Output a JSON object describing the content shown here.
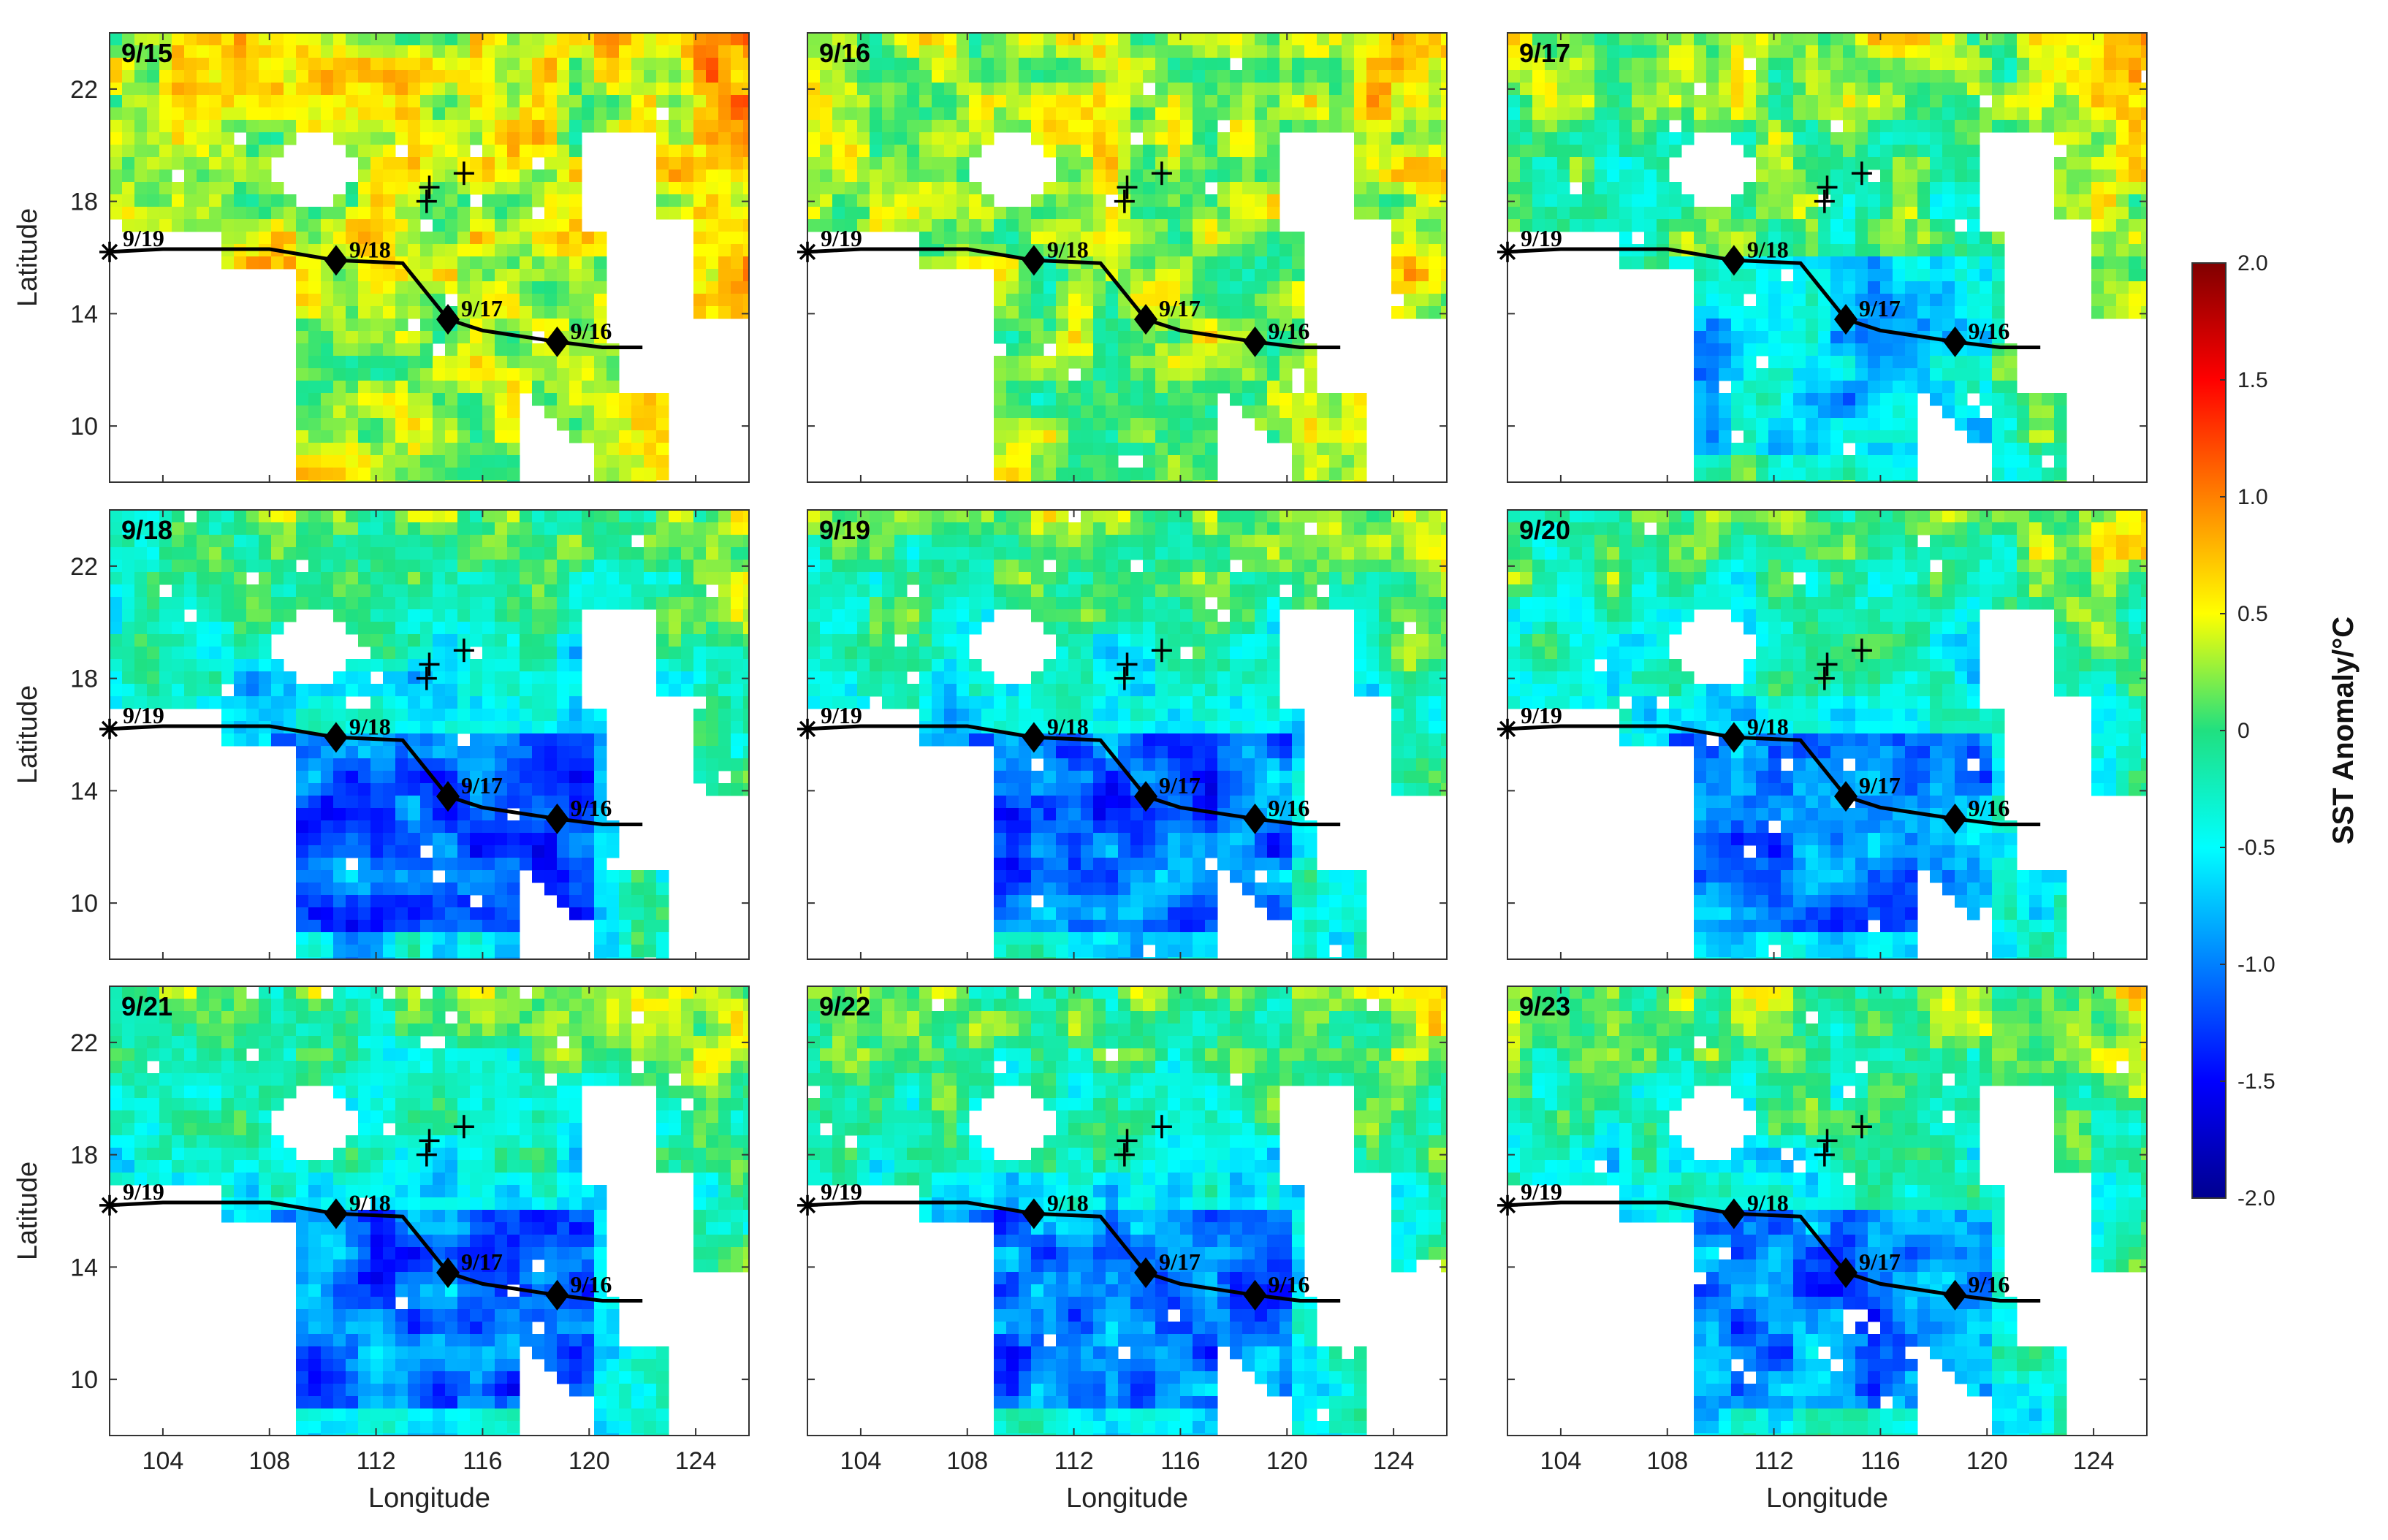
{
  "panels": [
    {
      "date": "9/15",
      "anomaly_level": 0.35
    },
    {
      "date": "9/16",
      "anomaly_level": 0.2
    },
    {
      "date": "9/17",
      "anomaly_level": -0.1
    },
    {
      "date": "9/18",
      "anomaly_level": -0.55
    },
    {
      "date": "9/19",
      "anomaly_level": -0.5
    },
    {
      "date": "9/20",
      "anomaly_level": -0.45
    },
    {
      "date": "9/21",
      "anomaly_level": -0.5
    },
    {
      "date": "9/22",
      "anomaly_level": -0.45
    },
    {
      "date": "9/23",
      "anomaly_level": -0.4
    }
  ],
  "typhoon_track": {
    "start_marker_label": "9/19",
    "daily_points": [
      {
        "label": "9/18",
        "lon": 110.5,
        "lat": 15.9
      },
      {
        "label": "9/17",
        "lon": 114.7,
        "lat": 13.8
      },
      {
        "label": "9/16",
        "lon": 118.8,
        "lat": 13.0
      }
    ],
    "path": [
      [
        102,
        16.2
      ],
      [
        104,
        16.3
      ],
      [
        108,
        16.3
      ],
      [
        110.5,
        15.9
      ],
      [
        113,
        15.8
      ],
      [
        114.7,
        13.8
      ],
      [
        116,
        13.4
      ],
      [
        118.8,
        13.0
      ],
      [
        120.5,
        12.8
      ],
      [
        122,
        12.8
      ]
    ],
    "start_point": {
      "lon": 102,
      "lat": 16.2
    }
  },
  "plus_markers": [
    {
      "lon": 114.0,
      "lat": 18.5
    },
    {
      "lon": 115.3,
      "lat": 19.0
    },
    {
      "lon": 113.9,
      "lat": 18.0
    }
  ],
  "axes": {
    "xlabel": "Longitude",
    "ylabel": "Latitude",
    "xticks": [
      "104",
      "108",
      "112",
      "116",
      "120",
      "124"
    ],
    "yticks": [
      "22",
      "18",
      "14",
      "10"
    ],
    "xlim": [
      102,
      126
    ],
    "ylim": [
      8,
      24
    ]
  },
  "colorbar": {
    "title": "SST Anomaly/°C",
    "ticks": [
      "2.0",
      "1.5",
      "1.0",
      "0.5",
      "0",
      "-0.5",
      "-1.0",
      "-1.5",
      "-2.0"
    ],
    "range": [
      -2.0,
      2.0
    ],
    "colors": [
      "#00008f",
      "#0000ff",
      "#0080ff",
      "#00ffff",
      "#20e080",
      "#ffff00",
      "#ff8000",
      "#ff0000",
      "#800000"
    ]
  }
}
